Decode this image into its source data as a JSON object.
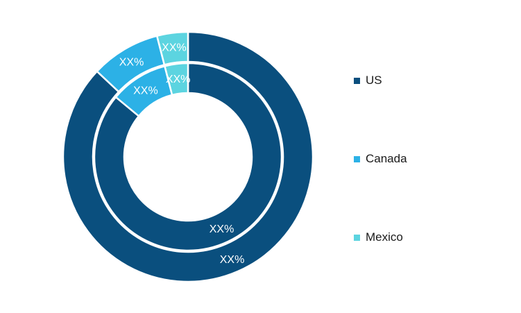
{
  "chart_data": {
    "type": "pie",
    "title": "",
    "rings": [
      {
        "name": "",
        "values": [
          87,
          9,
          4
        ],
        "labels": [
          "XX%",
          "XX%",
          "XX%"
        ]
      },
      {
        "name": "",
        "values": [
          86,
          10,
          4
        ],
        "labels": [
          "XX%",
          "XX%",
          "XX%"
        ]
      }
    ],
    "categories": [
      "US",
      "Canada",
      "Mexico"
    ],
    "colors": [
      "#0a4f7e",
      "#2cb1e6",
      "#5cd4e0"
    ],
    "legend_position": "right"
  }
}
